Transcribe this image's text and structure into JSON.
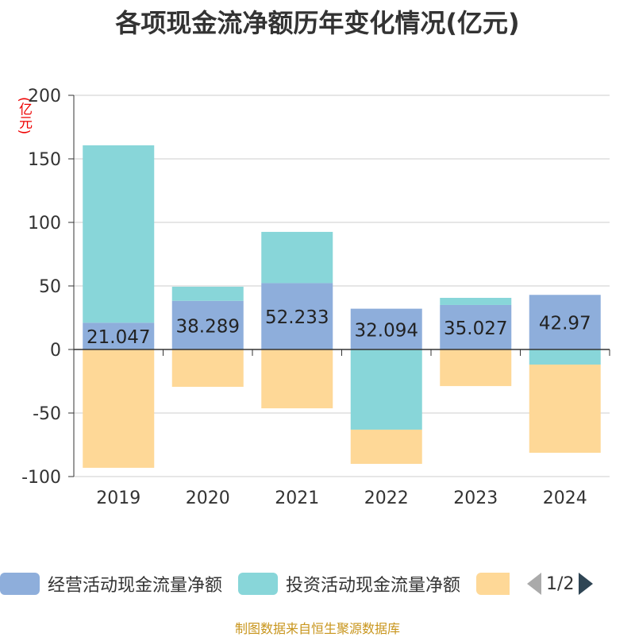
{
  "chart_data": {
    "type": "bar",
    "stacked": true,
    "title": "各项现金流净额历年变化情况(亿元)",
    "ylabel": "(亿元)",
    "xlabel": "",
    "ylim": [
      -100,
      200
    ],
    "yticks": [
      200,
      150,
      100,
      50,
      0,
      -50,
      -100
    ],
    "grid": true,
    "legend_position": "bottom",
    "categories": [
      "2019",
      "2020",
      "2021",
      "2022",
      "2023",
      "2024"
    ],
    "series": [
      {
        "name": "经营活动现金流量净额",
        "color": "#8eaedb",
        "values": [
          21.047,
          38.289,
          52.233,
          32.094,
          35.027,
          42.97
        ],
        "labels": [
          "21.047",
          "38.289",
          "52.233",
          "32.094",
          "35.027",
          "42.97"
        ]
      },
      {
        "name": "投资活动现金流量净额",
        "color": "#88d6d9",
        "values": [
          139.6,
          11.1,
          40.3,
          -63.1,
          5.6,
          -11.9
        ]
      },
      {
        "name": "",
        "color": "#fed897",
        "values": [
          -93.1,
          -29.4,
          -46.3,
          -26.9,
          -28.8,
          -69.4
        ]
      }
    ]
  },
  "legend": {
    "page": "1/2"
  },
  "source": "制图数据来自恒生聚源数据库"
}
